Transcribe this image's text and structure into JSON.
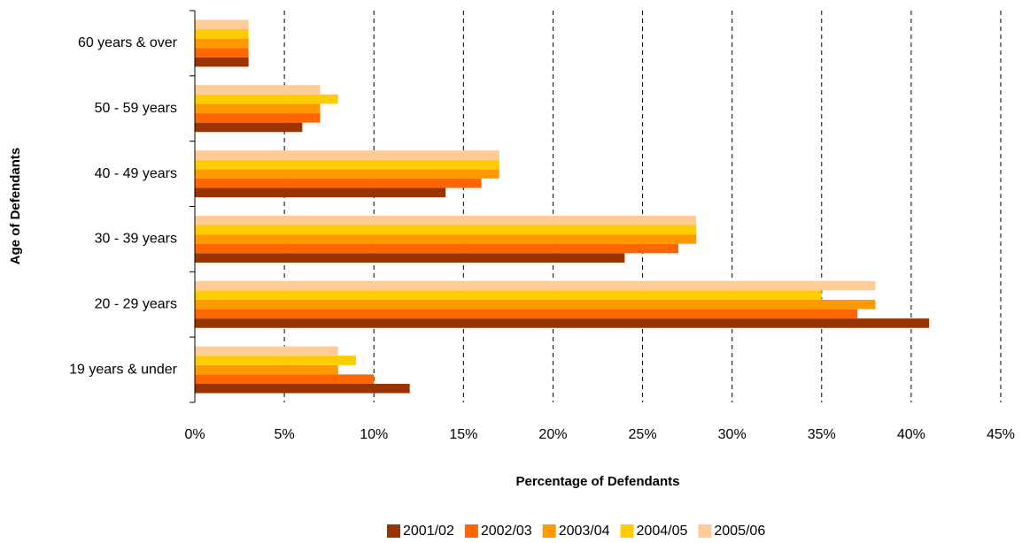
{
  "chart_data": {
    "type": "bar",
    "orientation": "horizontal",
    "x_label": "Percentage of Defendants",
    "y_label": "Age of Defendants",
    "categories": [
      "60 years & over",
      "50 - 59 years",
      "40 - 49 years",
      "30 - 39 years",
      "20 - 29 years",
      "19 years & under"
    ],
    "series": [
      {
        "name": "2001/02",
        "color": "#993300",
        "values": [
          3,
          6,
          14,
          24,
          41,
          12
        ]
      },
      {
        "name": "2002/03",
        "color": "#ff6600",
        "values": [
          3,
          7,
          16,
          27,
          37,
          10
        ]
      },
      {
        "name": "2003/04",
        "color": "#ff9900",
        "values": [
          3,
          7,
          17,
          28,
          38,
          8
        ]
      },
      {
        "name": "2004/05",
        "color": "#ffcc00",
        "values": [
          3,
          8,
          17,
          28,
          35,
          9
        ]
      },
      {
        "name": "2005/06",
        "color": "#ffcc99",
        "values": [
          3,
          7,
          17,
          28,
          38,
          8
        ]
      }
    ],
    "xlim": [
      0,
      45
    ],
    "xticks": [
      {
        "value": 0,
        "label": "0%"
      },
      {
        "value": 5,
        "label": "5%"
      },
      {
        "value": 10,
        "label": "10%"
      },
      {
        "value": 15,
        "label": "15%"
      },
      {
        "value": 20,
        "label": "20%"
      },
      {
        "value": 25,
        "label": "25%"
      },
      {
        "value": 30,
        "label": "30%"
      },
      {
        "value": 35,
        "label": "35%"
      },
      {
        "value": 40,
        "label": "40%"
      },
      {
        "value": 45,
        "label": "45%"
      }
    ],
    "grid": true,
    "legend": "bottom"
  }
}
